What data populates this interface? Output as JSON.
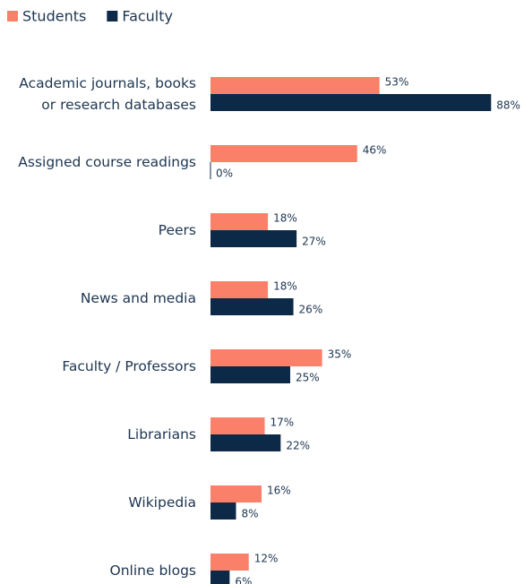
{
  "chart_data": {
    "type": "bar",
    "orientation": "horizontal",
    "categories": [
      "Academic journals, books or research databases",
      "Assigned course readings",
      "Peers",
      "News and media",
      "Faculty / Professors",
      "Librarians",
      "Wikipedia",
      "Online blogs"
    ],
    "series": [
      {
        "name": "Students",
        "color": "#fa8069",
        "values": [
          53,
          46,
          18,
          18,
          35,
          17,
          16,
          12
        ],
        "value_labels": [
          "53%",
          "46%",
          "18%",
          "18%",
          "35%",
          "17%",
          "16%",
          "12%"
        ]
      },
      {
        "name": "Faculty",
        "color": "#0c2a48",
        "values": [
          88,
          0,
          27,
          26,
          25,
          22,
          8,
          6
        ],
        "value_labels": [
          "88%",
          "0%",
          "27%",
          "26%",
          "25%",
          "22%",
          "8%",
          "6%"
        ]
      }
    ],
    "legend": "top-left"
  }
}
